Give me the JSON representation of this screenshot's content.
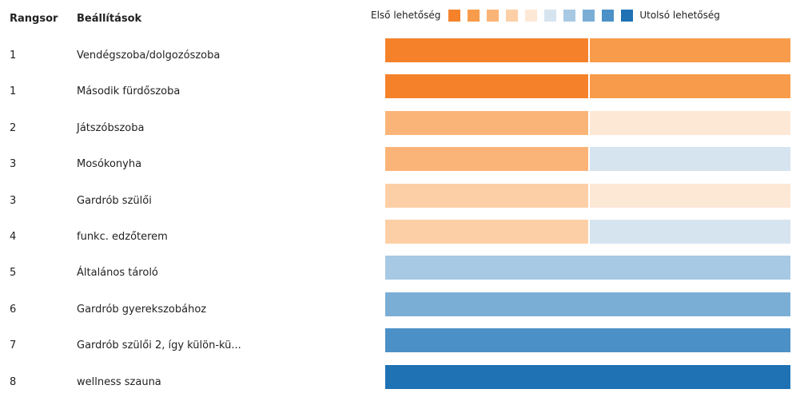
{
  "header": {
    "rank_label": "Rangsor",
    "option_label": "Beállítások"
  },
  "legend": {
    "first_label": "Első lehetőség",
    "last_label": "Utolsó lehetőség",
    "colors": [
      "#f5822a",
      "#f89b4a",
      "#fbb478",
      "#fdcfa6",
      "#fde8d6",
      "#d6e4f0",
      "#a7c9e3",
      "#7aaed5",
      "#4b90c6",
      "#1f72b4"
    ]
  },
  "chart_data": {
    "type": "bar",
    "orientation": "horizontal",
    "stacked": true,
    "scale": "rank distribution (1 = first choice, 10 = last choice)",
    "rows": [
      {
        "rank": "1",
        "label": "Vendégszoba/dolgozószoba",
        "segments": [
          {
            "level": 1,
            "share": 0.5
          },
          {
            "level": 2,
            "share": 0.5
          }
        ]
      },
      {
        "rank": "1",
        "label": "Második fürdőszoba",
        "segments": [
          {
            "level": 1,
            "share": 0.5
          },
          {
            "level": 2,
            "share": 0.5
          }
        ]
      },
      {
        "rank": "2",
        "label": "Játszóbszoba",
        "segments": [
          {
            "level": 3,
            "share": 0.5
          },
          {
            "level": 5,
            "share": 0.5
          }
        ]
      },
      {
        "rank": "3",
        "label": "Mosókonyha",
        "segments": [
          {
            "level": 3,
            "share": 0.5
          },
          {
            "level": 6,
            "share": 0.5
          }
        ]
      },
      {
        "rank": "3",
        "label": "Gardrób szülői",
        "segments": [
          {
            "level": 4,
            "share": 0.5
          },
          {
            "level": 5,
            "share": 0.5
          }
        ]
      },
      {
        "rank": "4",
        "label": "funkc. edzőterem",
        "segments": [
          {
            "level": 4,
            "share": 0.5
          },
          {
            "level": 6,
            "share": 0.5
          }
        ]
      },
      {
        "rank": "5",
        "label": "Általános tároló",
        "segments": [
          {
            "level": 7,
            "share": 1.0
          }
        ]
      },
      {
        "rank": "6",
        "label": "Gardrób gyerekszobához",
        "segments": [
          {
            "level": 8,
            "share": 1.0
          }
        ]
      },
      {
        "rank": "7",
        "label": "Gardrób szülői 2, így külön-kü...",
        "segments": [
          {
            "level": 9,
            "share": 1.0
          }
        ]
      },
      {
        "rank": "8",
        "label": "wellness szauna",
        "segments": [
          {
            "level": 10,
            "share": 1.0
          }
        ]
      }
    ]
  }
}
